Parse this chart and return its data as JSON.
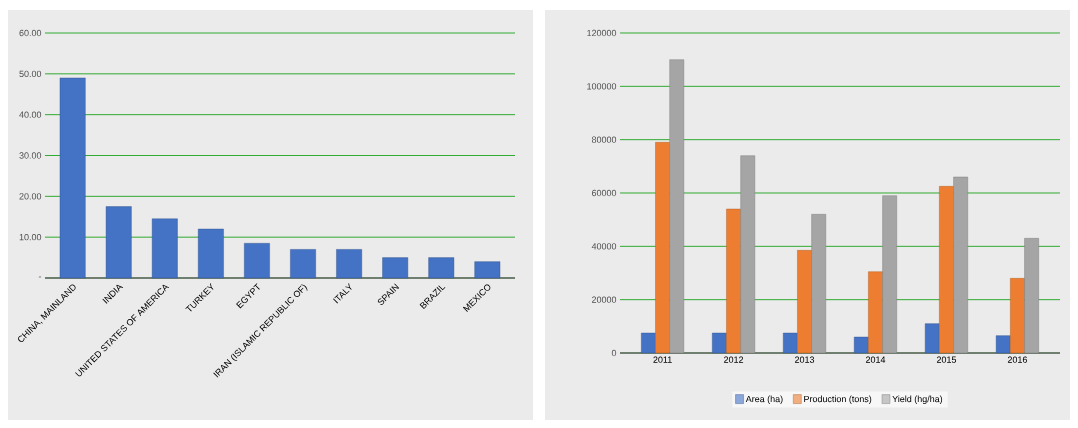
{
  "chart_data": [
    {
      "type": "bar",
      "categories": [
        "CHINA, MAINLAND",
        "INDIA",
        "UNITED STATES OF AMERICA",
        "TURKEY",
        "EGYPT",
        "IRAN (ISLAMIC REPUBLIC OF)",
        "ITALY",
        "SPAIN",
        "BRAZIL",
        "MEXICO"
      ],
      "values": [
        49,
        17.5,
        14.5,
        12,
        8.5,
        7,
        7,
        5,
        5,
        4
      ],
      "color": "#4472c4",
      "ylim": [
        0,
        60
      ],
      "yticks": [
        {
          "value": 0,
          "label": "-"
        },
        {
          "value": 10,
          "label": "10.00"
        },
        {
          "value": 20,
          "label": "20.00"
        },
        {
          "value": 30,
          "label": "30.00"
        },
        {
          "value": 40,
          "label": "40.00"
        },
        {
          "value": 50,
          "label": "50.00"
        },
        {
          "value": 60,
          "label": "60.00"
        }
      ],
      "grid": "y"
    },
    {
      "type": "bar",
      "categories": [
        "2011",
        "2012",
        "2013",
        "2014",
        "2015",
        "2016"
      ],
      "series": [
        {
          "name": "Area (ha)",
          "color": "#4472c4",
          "values": [
            7500,
            7500,
            7500,
            6000,
            11000,
            6500
          ]
        },
        {
          "name": "Production (tons)",
          "color": "#ed7d31",
          "values": [
            79000,
            54000,
            38500,
            30500,
            62500,
            28000
          ]
        },
        {
          "name": "Yield (hg/ha)",
          "color": "#a5a5a5",
          "values": [
            110000,
            74000,
            52000,
            59000,
            66000,
            43000
          ]
        }
      ],
      "ylim": [
        0,
        120000
      ],
      "yticks": [
        0,
        20000,
        40000,
        60000,
        80000,
        100000,
        120000
      ],
      "grid": "y",
      "legend": "bottom"
    }
  ]
}
